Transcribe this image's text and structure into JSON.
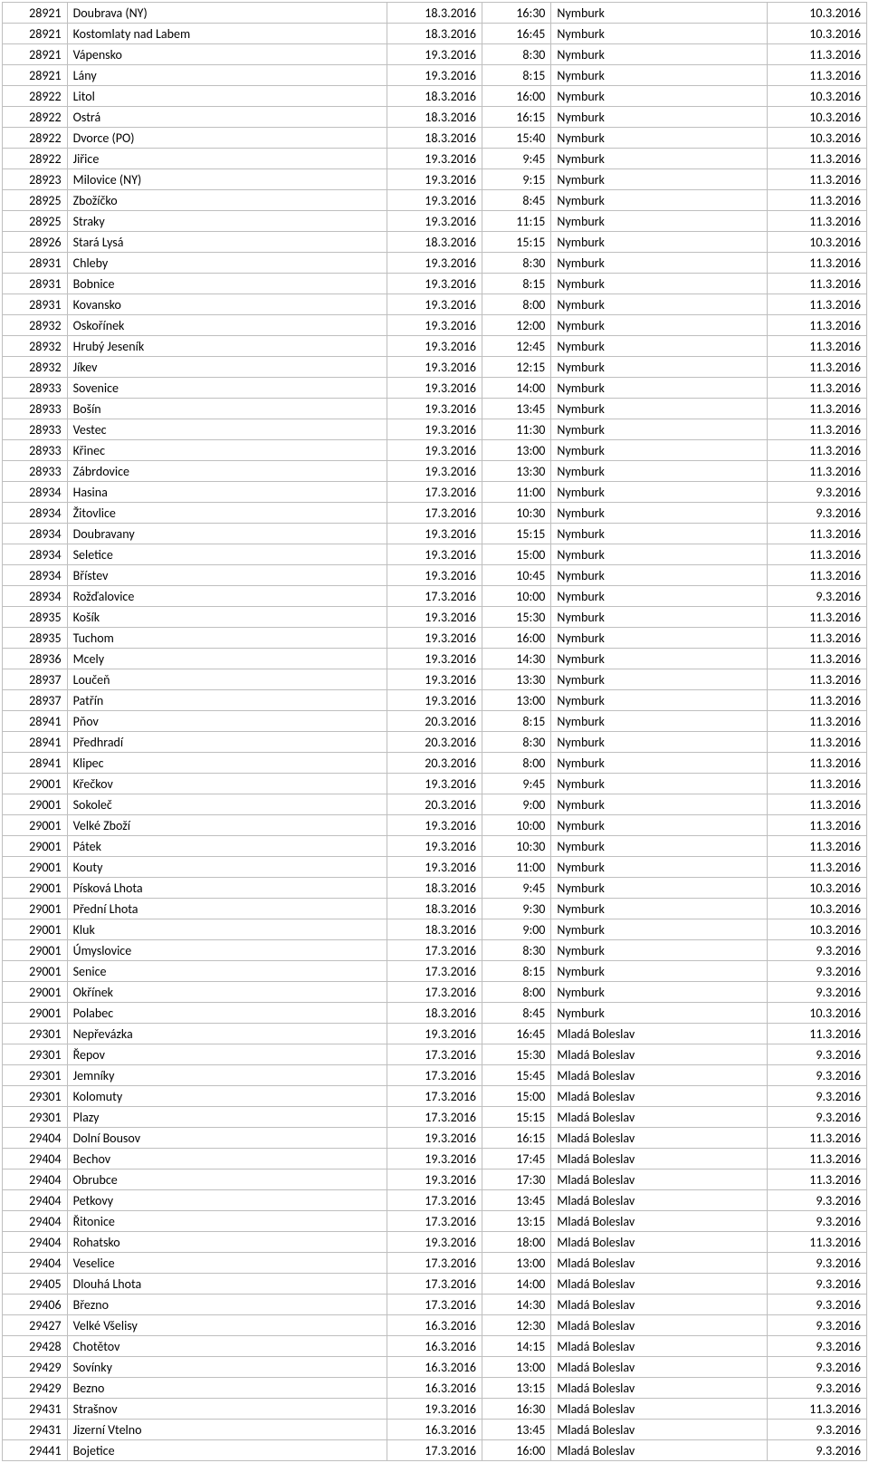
{
  "rows": [
    {
      "code": "28921",
      "name": "Doubrava (NY)",
      "date1": "18.3.2016",
      "time": "16:30",
      "place": "Nymburk",
      "date2": "10.3.2016"
    },
    {
      "code": "28921",
      "name": "Kostomlaty nad Labem",
      "date1": "18.3.2016",
      "time": "16:45",
      "place": "Nymburk",
      "date2": "10.3.2016"
    },
    {
      "code": "28921",
      "name": "Vápensko",
      "date1": "19.3.2016",
      "time": "8:30",
      "place": "Nymburk",
      "date2": "11.3.2016"
    },
    {
      "code": "28921",
      "name": "Lány",
      "date1": "19.3.2016",
      "time": "8:15",
      "place": "Nymburk",
      "date2": "11.3.2016"
    },
    {
      "code": "28922",
      "name": "Litol",
      "date1": "18.3.2016",
      "time": "16:00",
      "place": "Nymburk",
      "date2": "10.3.2016"
    },
    {
      "code": "28922",
      "name": "Ostrá",
      "date1": "18.3.2016",
      "time": "16:15",
      "place": "Nymburk",
      "date2": "10.3.2016"
    },
    {
      "code": "28922",
      "name": "Dvorce (PO)",
      "date1": "18.3.2016",
      "time": "15:40",
      "place": "Nymburk",
      "date2": "10.3.2016"
    },
    {
      "code": "28922",
      "name": "Jiřice",
      "date1": "19.3.2016",
      "time": "9:45",
      "place": "Nymburk",
      "date2": "11.3.2016"
    },
    {
      "code": "28923",
      "name": "Milovice (NY)",
      "date1": "19.3.2016",
      "time": "9:15",
      "place": "Nymburk",
      "date2": "11.3.2016"
    },
    {
      "code": "28925",
      "name": "Zbožíčko",
      "date1": "19.3.2016",
      "time": "8:45",
      "place": "Nymburk",
      "date2": "11.3.2016"
    },
    {
      "code": "28925",
      "name": "Straky",
      "date1": "19.3.2016",
      "time": "11:15",
      "place": "Nymburk",
      "date2": "11.3.2016"
    },
    {
      "code": "28926",
      "name": "Stará Lysá",
      "date1": "18.3.2016",
      "time": "15:15",
      "place": "Nymburk",
      "date2": "10.3.2016"
    },
    {
      "code": "28931",
      "name": "Chleby",
      "date1": "19.3.2016",
      "time": "8:30",
      "place": "Nymburk",
      "date2": "11.3.2016"
    },
    {
      "code": "28931",
      "name": "Bobnice",
      "date1": "19.3.2016",
      "time": "8:15",
      "place": "Nymburk",
      "date2": "11.3.2016"
    },
    {
      "code": "28931",
      "name": "Kovansko",
      "date1": "19.3.2016",
      "time": "8:00",
      "place": "Nymburk",
      "date2": "11.3.2016"
    },
    {
      "code": "28932",
      "name": "Oskořínek",
      "date1": "19.3.2016",
      "time": "12:00",
      "place": "Nymburk",
      "date2": "11.3.2016"
    },
    {
      "code": "28932",
      "name": "Hrubý Jeseník",
      "date1": "19.3.2016",
      "time": "12:45",
      "place": "Nymburk",
      "date2": "11.3.2016"
    },
    {
      "code": "28932",
      "name": "Jíkev",
      "date1": "19.3.2016",
      "time": "12:15",
      "place": "Nymburk",
      "date2": "11.3.2016"
    },
    {
      "code": "28933",
      "name": "Sovenice",
      "date1": "19.3.2016",
      "time": "14:00",
      "place": "Nymburk",
      "date2": "11.3.2016"
    },
    {
      "code": "28933",
      "name": "Bošín",
      "date1": "19.3.2016",
      "time": "13:45",
      "place": "Nymburk",
      "date2": "11.3.2016"
    },
    {
      "code": "28933",
      "name": "Vestec",
      "date1": "19.3.2016",
      "time": "11:30",
      "place": "Nymburk",
      "date2": "11.3.2016"
    },
    {
      "code": "28933",
      "name": "Křinec",
      "date1": "19.3.2016",
      "time": "13:00",
      "place": "Nymburk",
      "date2": "11.3.2016"
    },
    {
      "code": "28933",
      "name": "Zábrdovice",
      "date1": "19.3.2016",
      "time": "13:30",
      "place": "Nymburk",
      "date2": "11.3.2016"
    },
    {
      "code": "28934",
      "name": "Hasina",
      "date1": "17.3.2016",
      "time": "11:00",
      "place": "Nymburk",
      "date2": "9.3.2016"
    },
    {
      "code": "28934",
      "name": "Žitovlice",
      "date1": "17.3.2016",
      "time": "10:30",
      "place": "Nymburk",
      "date2": "9.3.2016"
    },
    {
      "code": "28934",
      "name": "Doubravany",
      "date1": "19.3.2016",
      "time": "15:15",
      "place": "Nymburk",
      "date2": "11.3.2016"
    },
    {
      "code": "28934",
      "name": "Seletice",
      "date1": "19.3.2016",
      "time": "15:00",
      "place": "Nymburk",
      "date2": "11.3.2016"
    },
    {
      "code": "28934",
      "name": "Břístev",
      "date1": "19.3.2016",
      "time": "10:45",
      "place": "Nymburk",
      "date2": "11.3.2016"
    },
    {
      "code": "28934",
      "name": "Rožďalovice",
      "date1": "17.3.2016",
      "time": "10:00",
      "place": "Nymburk",
      "date2": "9.3.2016"
    },
    {
      "code": "28935",
      "name": "Košík",
      "date1": "19.3.2016",
      "time": "15:30",
      "place": "Nymburk",
      "date2": "11.3.2016"
    },
    {
      "code": "28935",
      "name": "Tuchom",
      "date1": "19.3.2016",
      "time": "16:00",
      "place": "Nymburk",
      "date2": "11.3.2016"
    },
    {
      "code": "28936",
      "name": "Mcely",
      "date1": "19.3.2016",
      "time": "14:30",
      "place": "Nymburk",
      "date2": "11.3.2016"
    },
    {
      "code": "28937",
      "name": "Loučeň",
      "date1": "19.3.2016",
      "time": "13:30",
      "place": "Nymburk",
      "date2": "11.3.2016"
    },
    {
      "code": "28937",
      "name": "Patřín",
      "date1": "19.3.2016",
      "time": "13:00",
      "place": "Nymburk",
      "date2": "11.3.2016"
    },
    {
      "code": "28941",
      "name": "Pňov",
      "date1": "20.3.2016",
      "time": "8:15",
      "place": "Nymburk",
      "date2": "11.3.2016"
    },
    {
      "code": "28941",
      "name": "Předhradí",
      "date1": "20.3.2016",
      "time": "8:30",
      "place": "Nymburk",
      "date2": "11.3.2016"
    },
    {
      "code": "28941",
      "name": "Klipec",
      "date1": "20.3.2016",
      "time": "8:00",
      "place": "Nymburk",
      "date2": "11.3.2016"
    },
    {
      "code": "29001",
      "name": "Křečkov",
      "date1": "19.3.2016",
      "time": "9:45",
      "place": "Nymburk",
      "date2": "11.3.2016"
    },
    {
      "code": "29001",
      "name": "Sokoleč",
      "date1": "20.3.2016",
      "time": "9:00",
      "place": "Nymburk",
      "date2": "11.3.2016"
    },
    {
      "code": "29001",
      "name": "Velké Zboží",
      "date1": "19.3.2016",
      "time": "10:00",
      "place": "Nymburk",
      "date2": "11.3.2016"
    },
    {
      "code": "29001",
      "name": "Pátek",
      "date1": "19.3.2016",
      "time": "10:30",
      "place": "Nymburk",
      "date2": "11.3.2016"
    },
    {
      "code": "29001",
      "name": "Kouty",
      "date1": "19.3.2016",
      "time": "11:00",
      "place": "Nymburk",
      "date2": "11.3.2016"
    },
    {
      "code": "29001",
      "name": "Písková Lhota",
      "date1": "18.3.2016",
      "time": "9:45",
      "place": "Nymburk",
      "date2": "10.3.2016"
    },
    {
      "code": "29001",
      "name": "Přední Lhota",
      "date1": "18.3.2016",
      "time": "9:30",
      "place": "Nymburk",
      "date2": "10.3.2016"
    },
    {
      "code": "29001",
      "name": "Kluk",
      "date1": "18.3.2016",
      "time": "9:00",
      "place": "Nymburk",
      "date2": "10.3.2016"
    },
    {
      "code": "29001",
      "name": "Úmyslovice",
      "date1": "17.3.2016",
      "time": "8:30",
      "place": "Nymburk",
      "date2": "9.3.2016"
    },
    {
      "code": "29001",
      "name": "Senice",
      "date1": "17.3.2016",
      "time": "8:15",
      "place": "Nymburk",
      "date2": "9.3.2016"
    },
    {
      "code": "29001",
      "name": "Okřínek",
      "date1": "17.3.2016",
      "time": "8:00",
      "place": "Nymburk",
      "date2": "9.3.2016"
    },
    {
      "code": "29001",
      "name": "Polabec",
      "date1": "18.3.2016",
      "time": "8:45",
      "place": "Nymburk",
      "date2": "10.3.2016"
    },
    {
      "code": "29301",
      "name": "Nepřevázka",
      "date1": "19.3.2016",
      "time": "16:45",
      "place": "Mladá Boleslav",
      "date2": "11.3.2016"
    },
    {
      "code": "29301",
      "name": "Řepov",
      "date1": "17.3.2016",
      "time": "15:30",
      "place": "Mladá Boleslav",
      "date2": "9.3.2016"
    },
    {
      "code": "29301",
      "name": "Jemníky",
      "date1": "17.3.2016",
      "time": "15:45",
      "place": "Mladá Boleslav",
      "date2": "9.3.2016"
    },
    {
      "code": "29301",
      "name": "Kolomuty",
      "date1": "17.3.2016",
      "time": "15:00",
      "place": "Mladá Boleslav",
      "date2": "9.3.2016"
    },
    {
      "code": "29301",
      "name": "Plazy",
      "date1": "17.3.2016",
      "time": "15:15",
      "place": "Mladá Boleslav",
      "date2": "9.3.2016"
    },
    {
      "code": "29404",
      "name": "Dolní Bousov",
      "date1": "19.3.2016",
      "time": "16:15",
      "place": "Mladá Boleslav",
      "date2": "11.3.2016"
    },
    {
      "code": "29404",
      "name": "Bechov",
      "date1": "19.3.2016",
      "time": "17:45",
      "place": "Mladá Boleslav",
      "date2": "11.3.2016"
    },
    {
      "code": "29404",
      "name": "Obrubce",
      "date1": "19.3.2016",
      "time": "17:30",
      "place": "Mladá Boleslav",
      "date2": "11.3.2016"
    },
    {
      "code": "29404",
      "name": "Petkovy",
      "date1": "17.3.2016",
      "time": "13:45",
      "place": "Mladá Boleslav",
      "date2": "9.3.2016"
    },
    {
      "code": "29404",
      "name": "Řitonice",
      "date1": "17.3.2016",
      "time": "13:15",
      "place": "Mladá Boleslav",
      "date2": "9.3.2016"
    },
    {
      "code": "29404",
      "name": "Rohatsko",
      "date1": "19.3.2016",
      "time": "18:00",
      "place": "Mladá Boleslav",
      "date2": "11.3.2016"
    },
    {
      "code": "29404",
      "name": "Veselice",
      "date1": "17.3.2016",
      "time": "13:00",
      "place": "Mladá Boleslav",
      "date2": "9.3.2016"
    },
    {
      "code": "29405",
      "name": "Dlouhá Lhota",
      "date1": "17.3.2016",
      "time": "14:00",
      "place": "Mladá Boleslav",
      "date2": "9.3.2016"
    },
    {
      "code": "29406",
      "name": "Březno",
      "date1": "17.3.2016",
      "time": "14:30",
      "place": "Mladá Boleslav",
      "date2": "9.3.2016"
    },
    {
      "code": "29427",
      "name": "Velké Všelisy",
      "date1": "16.3.2016",
      "time": "12:30",
      "place": "Mladá Boleslav",
      "date2": "9.3.2016"
    },
    {
      "code": "29428",
      "name": "Chotětov",
      "date1": "16.3.2016",
      "time": "14:15",
      "place": "Mladá Boleslav",
      "date2": "9.3.2016"
    },
    {
      "code": "29429",
      "name": "Sovínky",
      "date1": "16.3.2016",
      "time": "13:00",
      "place": "Mladá Boleslav",
      "date2": "9.3.2016"
    },
    {
      "code": "29429",
      "name": "Bezno",
      "date1": "16.3.2016",
      "time": "13:15",
      "place": "Mladá Boleslav",
      "date2": "9.3.2016"
    },
    {
      "code": "29431",
      "name": "Strašnov",
      "date1": "19.3.2016",
      "time": "16:30",
      "place": "Mladá Boleslav",
      "date2": "11.3.2016"
    },
    {
      "code": "29431",
      "name": "Jizerní Vtelno",
      "date1": "16.3.2016",
      "time": "13:45",
      "place": "Mladá Boleslav",
      "date2": "9.3.2016"
    },
    {
      "code": "29441",
      "name": "Bojetice",
      "date1": "17.3.2016",
      "time": "16:00",
      "place": "Mladá Boleslav",
      "date2": "9.3.2016"
    }
  ]
}
